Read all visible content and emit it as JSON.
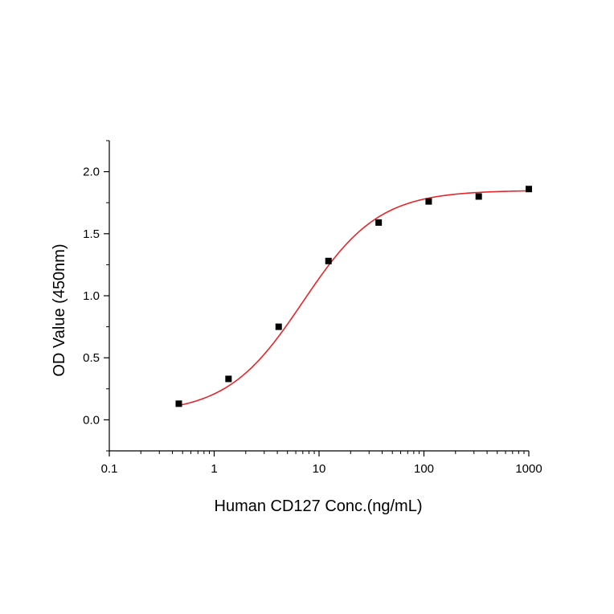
{
  "chart_data": {
    "type": "scatter",
    "title": "",
    "xlabel": "Human CD127 Conc.(ng/mL)",
    "ylabel": "OD Value (450nm)",
    "x_scale": "log",
    "xlim": [
      0.1,
      1000
    ],
    "ylim": [
      -0.25,
      2.25
    ],
    "x_ticks": [
      0.1,
      1,
      10,
      100,
      1000
    ],
    "x_tick_labels": [
      "0.1",
      "1",
      "10",
      "100",
      "1000"
    ],
    "y_ticks": [
      0.0,
      0.5,
      1.0,
      1.5,
      2.0
    ],
    "y_tick_labels": [
      "0.0",
      "0.5",
      "1.0",
      "1.5",
      "2.0"
    ],
    "grid": false,
    "legend": "none",
    "series": [
      {
        "x": [
          0.46,
          1.37,
          4.12,
          12.3,
          37.0,
          111,
          333,
          1000
        ],
        "y": [
          0.13,
          0.33,
          0.75,
          1.28,
          1.59,
          1.76,
          1.8,
          1.86
        ],
        "marker": "square",
        "color": "#000000"
      }
    ],
    "fit_curve": {
      "model": "4PL",
      "color": "#e8262a",
      "bottom": 0.05,
      "top": 1.85,
      "ec50": 7.0,
      "hill": 1.2
    }
  }
}
